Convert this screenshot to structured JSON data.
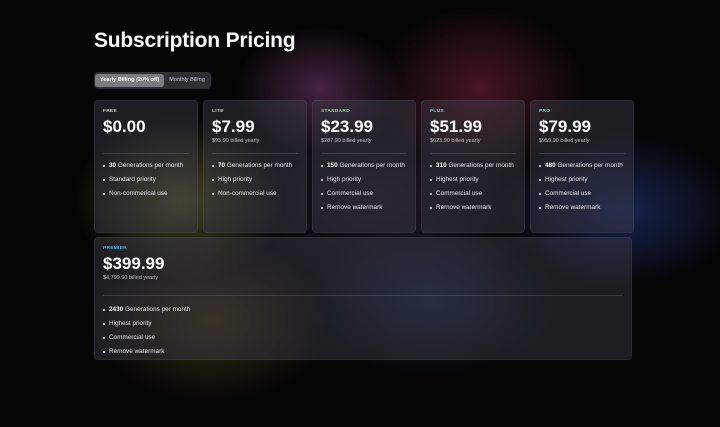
{
  "page": {
    "title": "Subscription Pricing"
  },
  "billing_toggle": {
    "yearly_label": "Yearly Billing (20% off)",
    "monthly_label": "Monthly Billing",
    "selected": "yearly"
  },
  "plans": [
    {
      "name": "FREE",
      "price": "$0.00",
      "billed": "",
      "generations": "30",
      "generations_label": "Generations per month",
      "features": [
        "Standard priority",
        "Non-commerical use"
      ]
    },
    {
      "name": "LITE",
      "price": "$7.99",
      "billed": "$95.90 billed yearly",
      "generations": "70",
      "generations_label": "Generations per month",
      "features": [
        "High priority",
        "Non-commercial use"
      ]
    },
    {
      "name": "STANDARD",
      "price": "$23.99",
      "billed": "$287.90 billed yearly",
      "generations": "150",
      "generations_label": "Generations per month",
      "features": [
        "High priority",
        "Commercial use",
        "Remove watermark"
      ]
    },
    {
      "name": "PLUS",
      "price": "$51.99",
      "billed": "$623.90 billed yearly",
      "generations": "310",
      "generations_label": "Generations per month",
      "features": [
        "Highest priority",
        "Commercial use",
        "Remove watermark"
      ]
    },
    {
      "name": "PRO",
      "price": "$79.99",
      "billed": "$959.90 billed yearly",
      "generations": "480",
      "generations_label": "Generations per month",
      "features": [
        "Highest priority",
        "Commercial use",
        "Remove watermark"
      ]
    },
    {
      "name": "PREMIER",
      "price": "$399.99",
      "billed": "$4,799.90 billed yearly",
      "generations": "2430",
      "generations_label": "Generations per month",
      "features": [
        "Highest priority",
        "Commercial use",
        "Remove watermark"
      ]
    }
  ],
  "colors": {
    "standard": "#7fe07a",
    "plus": "#6ee0c8",
    "pro": "#6ee0c8",
    "premier": "#56b8f0"
  }
}
